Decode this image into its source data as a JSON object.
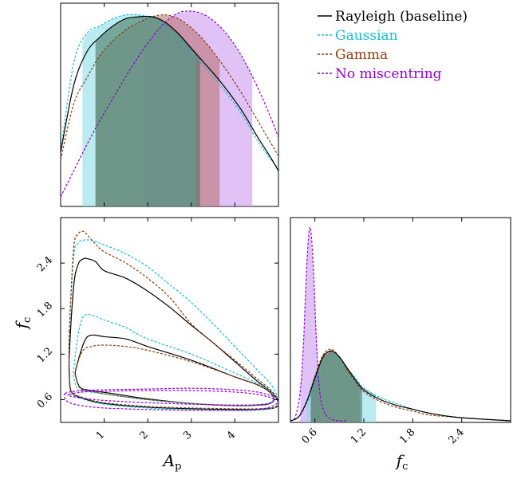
{
  "chart_data": {
    "type": "corner",
    "parameters": [
      {
        "name": "A_p",
        "label_main": "A",
        "label_sub": "p",
        "range": [
          0.0,
          5.0
        ],
        "ticks": [
          1,
          2,
          3,
          4
        ],
        "tick_labels": [
          "1",
          "2",
          "3",
          "4"
        ]
      },
      {
        "name": "f_c",
        "label_main": "f",
        "label_sub": "c",
        "range": [
          0.3,
          3.0
        ],
        "ticks": [
          0.6,
          1.2,
          1.8,
          2.4
        ],
        "tick_labels": [
          "0.6",
          "1.2",
          "1.8",
          "2.4"
        ]
      }
    ],
    "legend": {
      "placement": "top-right",
      "entries": [
        {
          "label": "Rayleigh (baseline)",
          "color": "#000000",
          "linestyle": "solid"
        },
        {
          "label": "Gaussian",
          "color": "#17becf",
          "linestyle": "dashed"
        },
        {
          "label": "Gamma",
          "color": "#8c3c10",
          "linestyle": "dashed"
        },
        {
          "label": "No miscentring",
          "color": "#9400d3",
          "linestyle": "dashed"
        }
      ]
    },
    "series": [
      {
        "label": "Rayleigh (baseline)",
        "color": "#000000",
        "dash": "",
        "fill": "#3f6f55",
        "A_p_pdf": {
          "x": [
            0,
            0.3,
            0.6,
            0.9,
            1.2,
            1.5,
            1.8,
            2.1,
            2.4,
            2.7,
            3.0,
            3.3,
            3.6,
            3.9,
            4.2,
            4.5,
            4.8,
            5.0
          ],
          "y": [
            0.24,
            0.6,
            0.78,
            0.86,
            0.92,
            0.96,
            0.97,
            0.97,
            0.94,
            0.88,
            0.8,
            0.72,
            0.64,
            0.55,
            0.45,
            0.33,
            0.22,
            0.14
          ]
        },
        "A_p_interval": [
          0.8,
          3.2
        ],
        "f_c_pdf": {
          "x": [
            0.3,
            0.4,
            0.5,
            0.6,
            0.7,
            0.8,
            0.9,
            1.0,
            1.1,
            1.2,
            1.4,
            1.6,
            1.8,
            2.0,
            2.3,
            2.6,
            3.0
          ],
          "y": [
            0.0,
            0.02,
            0.1,
            0.22,
            0.33,
            0.36,
            0.33,
            0.27,
            0.21,
            0.16,
            0.11,
            0.08,
            0.06,
            0.04,
            0.02,
            0.01,
            0.0
          ]
        },
        "f_c_interval": [
          0.55,
          1.18
        ],
        "contours": [
          {
            "A_p": [
              0.35,
              0.5,
              0.6,
              0.7,
              0.8,
              1.0,
              1.5,
              2.0,
              3.0,
              4.0,
              4.5,
              4.8,
              4.9,
              4.8,
              4.6,
              4.0,
              3.0,
              2.0,
              1.2,
              0.7,
              0.45,
              0.35
            ],
            "f_c": [
              1.0,
              1.3,
              1.42,
              1.45,
              1.45,
              1.43,
              1.4,
              1.3,
              1.12,
              0.9,
              0.8,
              0.7,
              0.6,
              0.55,
              0.53,
              0.52,
              0.55,
              0.61,
              0.68,
              0.72,
              0.76,
              0.9
            ]
          },
          {
            "A_p": [
              0.2,
              0.3,
              0.4,
              0.5,
              0.6,
              0.8,
              1.0,
              1.5,
              2.0,
              2.5,
              3.0,
              3.5,
              4.0,
              4.5,
              4.8,
              4.95,
              5.0,
              4.9,
              4.5,
              4.0,
              3.0,
              2.0,
              1.0,
              0.5,
              0.25,
              0.2
            ],
            "f_c": [
              1.2,
              2.1,
              2.38,
              2.45,
              2.46,
              2.42,
              2.3,
              2.2,
              2.03,
              1.82,
              1.58,
              1.35,
              1.1,
              0.85,
              0.72,
              0.62,
              0.54,
              0.49,
              0.47,
              0.47,
              0.48,
              0.5,
              0.55,
              0.62,
              0.7,
              0.9
            ]
          }
        ]
      },
      {
        "label": "Gaussian",
        "color": "#17becf",
        "dash": "3,2",
        "fill": "#7fdbe4",
        "A_p_pdf": {
          "x": [
            0,
            0.3,
            0.6,
            0.9,
            1.2,
            1.5,
            1.8,
            2.1,
            2.4,
            2.7,
            3.0,
            3.3,
            3.6,
            3.9,
            4.2,
            4.5,
            4.8,
            5.0
          ],
          "y": [
            0.24,
            0.72,
            0.88,
            0.92,
            0.96,
            0.98,
            0.98,
            0.96,
            0.92,
            0.86,
            0.78,
            0.7,
            0.62,
            0.53,
            0.43,
            0.31,
            0.21,
            0.15
          ]
        },
        "A_p_interval": [
          0.5,
          3.1
        ],
        "f_c_pdf": {
          "x": [
            0.3,
            0.4,
            0.5,
            0.6,
            0.7,
            0.8,
            0.9,
            1.0,
            1.1,
            1.2,
            1.4,
            1.6,
            1.8,
            2.0,
            2.3,
            2.6,
            3.0
          ],
          "y": [
            0.0,
            0.02,
            0.09,
            0.2,
            0.3,
            0.34,
            0.32,
            0.27,
            0.22,
            0.17,
            0.12,
            0.09,
            0.06,
            0.04,
            0.02,
            0.01,
            0.0
          ]
        },
        "f_c_interval": [
          0.5,
          1.35
        ],
        "contours": [
          {
            "A_p": [
              0.3,
              0.4,
              0.5,
              0.6,
              0.8,
              1.0,
              1.5,
              2.0,
              3.0,
              4.0,
              4.5,
              4.8,
              4.9,
              4.8,
              4.6,
              4.0,
              3.0,
              2.0,
              1.2,
              0.7,
              0.4,
              0.3
            ],
            "f_c": [
              1.0,
              1.45,
              1.68,
              1.72,
              1.7,
              1.65,
              1.55,
              1.4,
              1.2,
              0.95,
              0.82,
              0.72,
              0.62,
              0.56,
              0.54,
              0.52,
              0.55,
              0.6,
              0.66,
              0.7,
              0.74,
              0.9
            ]
          },
          {
            "A_p": [
              0.2,
              0.3,
              0.4,
              0.5,
              0.7,
              1.0,
              1.5,
              2.0,
              2.5,
              3.0,
              3.5,
              4.0,
              4.5,
              4.8,
              4.95,
              5.0,
              4.9,
              4.5,
              4.0,
              3.0,
              2.0,
              1.0,
              0.5,
              0.25,
              0.2
            ],
            "f_c": [
              1.5,
              2.5,
              2.66,
              2.7,
              2.7,
              2.64,
              2.52,
              2.35,
              2.12,
              1.88,
              1.6,
              1.3,
              1.0,
              0.82,
              0.68,
              0.56,
              0.49,
              0.46,
              0.46,
              0.47,
              0.49,
              0.54,
              0.61,
              0.7,
              1.0
            ]
          }
        ]
      },
      {
        "label": "Gamma",
        "color": "#8c3c10",
        "dash": "3,2",
        "fill": "#b86d66",
        "A_p_pdf": {
          "x": [
            0,
            0.3,
            0.6,
            0.9,
            1.2,
            1.5,
            1.8,
            2.1,
            2.4,
            2.7,
            3.0,
            3.3,
            3.6,
            3.9,
            4.2,
            4.5,
            4.8,
            5.0
          ],
          "y": [
            0.2,
            0.5,
            0.64,
            0.76,
            0.84,
            0.9,
            0.94,
            0.97,
            0.98,
            0.96,
            0.91,
            0.84,
            0.75,
            0.65,
            0.54,
            0.42,
            0.3,
            0.22
          ]
        },
        "A_p_interval": [
          0.8,
          3.65
        ],
        "f_c_pdf": {
          "x": [
            0.3,
            0.4,
            0.5,
            0.6,
            0.7,
            0.8,
            0.9,
            1.0,
            1.1,
            1.2,
            1.4,
            1.6,
            1.8,
            2.0,
            2.3,
            2.6,
            3.0
          ],
          "y": [
            0.0,
            0.02,
            0.1,
            0.23,
            0.34,
            0.37,
            0.33,
            0.26,
            0.2,
            0.15,
            0.1,
            0.07,
            0.05,
            0.03,
            0.02,
            0.01,
            0.0
          ]
        },
        "f_c_interval": [
          0.55,
          1.15
        ],
        "contours": [
          {
            "A_p": [
              0.35,
              0.5,
              0.7,
              1.0,
              1.5,
              2.0,
              3.0,
              4.0,
              4.5,
              4.8,
              4.9,
              4.8,
              4.6,
              4.0,
              3.0,
              2.0,
              1.2,
              0.7,
              0.45,
              0.35
            ],
            "f_c": [
              1.0,
              1.24,
              1.3,
              1.32,
              1.3,
              1.25,
              1.1,
              0.9,
              0.8,
              0.7,
              0.6,
              0.55,
              0.53,
              0.52,
              0.55,
              0.6,
              0.66,
              0.71,
              0.75,
              0.9
            ]
          },
          {
            "A_p": [
              0.2,
              0.3,
              0.4,
              0.5,
              0.6,
              0.8,
              1.0,
              1.5,
              2.0,
              2.5,
              3.0,
              3.5,
              4.0,
              4.5,
              4.8,
              4.95,
              5.0,
              4.9,
              4.5,
              4.0,
              3.0,
              2.0,
              1.0,
              0.5,
              0.25,
              0.2
            ],
            "f_c": [
              1.5,
              2.6,
              2.78,
              2.82,
              2.78,
              2.65,
              2.55,
              2.4,
              2.2,
              1.95,
              1.6,
              1.35,
              1.12,
              0.88,
              0.74,
              0.64,
              0.56,
              0.5,
              0.48,
              0.48,
              0.49,
              0.51,
              0.56,
              0.63,
              0.71,
              1.0
            ]
          }
        ]
      },
      {
        "label": "No miscentring",
        "color": "#9400d3",
        "dash": "3,2",
        "fill": "#c890f0",
        "A_p_pdf": {
          "x": [
            0,
            0.3,
            0.6,
            0.9,
            1.2,
            1.5,
            1.8,
            2.1,
            2.4,
            2.7,
            3.0,
            3.3,
            3.6,
            3.9,
            4.2,
            4.5,
            4.8,
            5.0
          ],
          "y": [
            0.0,
            0.14,
            0.28,
            0.41,
            0.53,
            0.65,
            0.76,
            0.86,
            0.94,
            0.99,
            1.0,
            0.98,
            0.93,
            0.85,
            0.74,
            0.6,
            0.44,
            0.32
          ]
        },
        "A_p_interval": [
          1.9,
          4.4
        ],
        "f_c_pdf": {
          "x": [
            0.3,
            0.36,
            0.42,
            0.46,
            0.5,
            0.54,
            0.58,
            0.62,
            0.66,
            0.72,
            0.8,
            0.9,
            1.0
          ],
          "y": [
            0.0,
            0.02,
            0.15,
            0.4,
            0.8,
            1.0,
            0.8,
            0.4,
            0.15,
            0.04,
            0.01,
            0.0,
            0.0
          ]
        },
        "f_c_interval": [
          0.42,
          0.67
        ],
        "contours": [
          {
            "A_p": [
              0.2,
              0.5,
              1.0,
              2.0,
              3.0,
              4.0,
              4.6,
              4.9,
              4.7,
              4.0,
              3.0,
              2.0,
              1.0,
              0.5,
              0.2
            ],
            "f_c": [
              0.67,
              0.7,
              0.71,
              0.72,
              0.72,
              0.7,
              0.66,
              0.6,
              0.54,
              0.53,
              0.54,
              0.56,
              0.59,
              0.62,
              0.65
            ]
          },
          {
            "A_p": [
              0.1,
              0.3,
              0.6,
              1.0,
              2.0,
              3.0,
              4.0,
              4.6,
              5.0,
              4.8,
              4.2,
              3.0,
              2.0,
              1.0,
              0.5,
              0.2,
              0.1
            ],
            "f_c": [
              0.68,
              0.71,
              0.72,
              0.73,
              0.74,
              0.75,
              0.73,
              0.69,
              0.6,
              0.5,
              0.46,
              0.46,
              0.47,
              0.49,
              0.52,
              0.56,
              0.62
            ]
          }
        ]
      }
    ]
  }
}
